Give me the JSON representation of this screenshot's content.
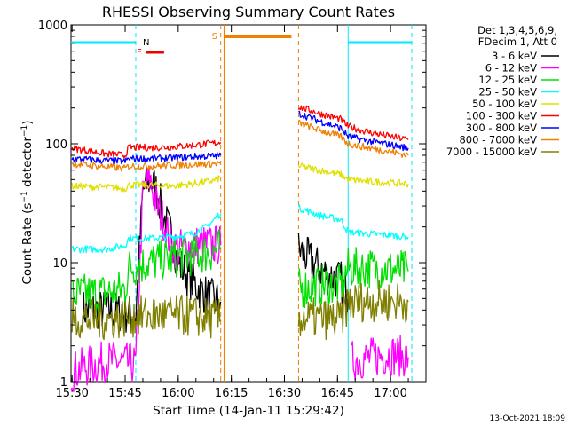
{
  "chart_data": {
    "type": "line",
    "title": "RHESSI Observing Summary Count Rates",
    "xlabel": "Start Time (14-Jan-11 15:29:42)",
    "ylabel": "Count Rate (s⁻¹ detector⁻¹)",
    "yscale": "log",
    "ylim": [
      1,
      1000
    ],
    "xlim": [
      "15:29:42",
      "17:10:00"
    ],
    "x_ticks": [
      "15:30",
      "15:45",
      "16:00",
      "16:15",
      "16:30",
      "16:45",
      "17:00"
    ],
    "y_ticks": [
      "1",
      "10",
      "100",
      "1000"
    ],
    "legend_header": [
      "Det 1,3,4,5,6,9,",
      "FDecim 1, Att 0"
    ],
    "legend_position": "right",
    "footer": "13-Oct-2021 18:09",
    "flag_labels": {
      "night": "N",
      "flare": "F",
      "saa": "S"
    },
    "colors": {
      "night": "#00e8ff",
      "saa": "#f08000",
      "flare": "#ee0000"
    },
    "flags": {
      "night": [
        [
          "15:29:42",
          "15:48"
        ],
        [
          "16:48",
          "17:06"
        ]
      ],
      "saa": [
        [
          "16:13",
          "16:32"
        ]
      ],
      "flare": [
        [
          "15:51",
          "15:56"
        ]
      ]
    },
    "data_gaps": [
      [
        "16:12",
        "16:34"
      ]
    ],
    "series": [
      {
        "name": "3 - 6 keV",
        "color": "#000000",
        "points": [
          [
            "15:33",
            4
          ],
          [
            "15:40",
            4
          ],
          [
            "15:48",
            3.6
          ],
          [
            "15:50",
            40
          ],
          [
            "15:52",
            50
          ],
          [
            "15:54",
            40
          ],
          [
            "15:56",
            24
          ],
          [
            "15:58",
            17
          ],
          [
            "16:00",
            10
          ],
          [
            "16:03",
            7.5
          ],
          [
            "16:06",
            6
          ],
          [
            "16:09",
            5
          ],
          [
            "16:12",
            4.7
          ],
          [
            "16:34",
            13
          ],
          [
            "16:38",
            10
          ],
          [
            "16:42",
            8
          ],
          [
            "16:46",
            7
          ],
          [
            "16:48",
            5
          ]
        ]
      },
      {
        "name": "6 - 12 keV",
        "color": "#ff00ff",
        "points": [
          [
            "15:29:42",
            1.2
          ],
          [
            "15:33",
            1.3
          ],
          [
            "15:40",
            1.5
          ],
          [
            "15:48",
            1.4
          ],
          [
            "15:50",
            38
          ],
          [
            "15:52",
            50
          ],
          [
            "15:54",
            30
          ],
          [
            "15:56",
            22
          ],
          [
            "15:58",
            14
          ],
          [
            "16:00",
            13
          ],
          [
            "16:05",
            14
          ],
          [
            "16:12",
            14
          ],
          [
            "16:49",
            1.5
          ],
          [
            "16:55",
            1.6
          ],
          [
            "17:00",
            1.7
          ],
          [
            "17:05",
            1.6
          ]
        ]
      },
      {
        "name": "12 - 25 keV",
        "color": "#00e000",
        "points": [
          [
            "15:30",
            5.4
          ],
          [
            "15:40",
            5.6
          ],
          [
            "15:45",
            6
          ],
          [
            "15:46",
            9
          ],
          [
            "15:52",
            10
          ],
          [
            "15:58",
            11
          ],
          [
            "16:04",
            11.5
          ],
          [
            "16:10",
            12.5
          ],
          [
            "16:12",
            13.5
          ],
          [
            "16:34",
            6
          ],
          [
            "16:40",
            6.5
          ],
          [
            "16:46",
            6.5
          ],
          [
            "16:48",
            9
          ],
          [
            "16:54",
            9
          ],
          [
            "17:00",
            8.8
          ],
          [
            "17:05",
            8.5
          ]
        ]
      },
      {
        "name": "25 - 50 keV",
        "color": "#00ffff",
        "points": [
          [
            "15:30",
            13
          ],
          [
            "15:40",
            13
          ],
          [
            "15:45",
            14
          ],
          [
            "15:46",
            16
          ],
          [
            "15:52",
            16
          ],
          [
            "15:58",
            16.5
          ],
          [
            "16:04",
            17.5
          ],
          [
            "16:08",
            20
          ],
          [
            "16:12",
            26
          ],
          [
            "16:34",
            29
          ],
          [
            "16:40",
            25
          ],
          [
            "16:46",
            23
          ],
          [
            "16:48",
            18
          ],
          [
            "16:54",
            17.5
          ],
          [
            "17:00",
            17
          ],
          [
            "17:05",
            16.5
          ]
        ]
      },
      {
        "name": "50 - 100 keV",
        "color": "#e0e000",
        "points": [
          [
            "15:30",
            44
          ],
          [
            "15:40",
            43
          ],
          [
            "15:45",
            42
          ],
          [
            "15:46",
            45
          ],
          [
            "15:52",
            45
          ],
          [
            "15:58",
            44
          ],
          [
            "16:04",
            46
          ],
          [
            "16:10",
            49
          ],
          [
            "16:12",
            52
          ],
          [
            "16:34",
            65
          ],
          [
            "16:40",
            60
          ],
          [
            "16:46",
            55
          ],
          [
            "16:48",
            50
          ],
          [
            "16:54",
            48
          ],
          [
            "17:00",
            47
          ],
          [
            "17:05",
            46
          ]
        ]
      },
      {
        "name": "100 - 300 keV",
        "color": "#ff0000",
        "points": [
          [
            "15:30",
            92
          ],
          [
            "15:40",
            82
          ],
          [
            "15:45",
            80
          ],
          [
            "15:46",
            93
          ],
          [
            "15:52",
            93
          ],
          [
            "15:58",
            94
          ],
          [
            "16:04",
            97
          ],
          [
            "16:10",
            101
          ],
          [
            "16:12",
            103
          ],
          [
            "16:34",
            205
          ],
          [
            "16:40",
            180
          ],
          [
            "16:46",
            160
          ],
          [
            "16:48",
            140
          ],
          [
            "16:54",
            125
          ],
          [
            "17:00",
            115
          ],
          [
            "17:05",
            108
          ]
        ]
      },
      {
        "name": "300 - 800 keV",
        "color": "#0000ff",
        "points": [
          [
            "15:30",
            75
          ],
          [
            "15:40",
            72
          ],
          [
            "15:45",
            71
          ],
          [
            "15:46",
            75
          ],
          [
            "15:52",
            75
          ],
          [
            "15:58",
            76
          ],
          [
            "16:04",
            78
          ],
          [
            "16:10",
            79
          ],
          [
            "16:12",
            80
          ],
          [
            "16:34",
            180
          ],
          [
            "16:40",
            155
          ],
          [
            "16:46",
            135
          ],
          [
            "16:48",
            115
          ],
          [
            "16:54",
            105
          ],
          [
            "17:00",
            98
          ],
          [
            "17:05",
            92
          ]
        ]
      },
      {
        "name": "800 - 7000 keV",
        "color": "#f08000",
        "points": [
          [
            "15:30",
            68
          ],
          [
            "15:40",
            64
          ],
          [
            "15:45",
            62
          ],
          [
            "15:46",
            65
          ],
          [
            "15:52",
            65
          ],
          [
            "15:58",
            66
          ],
          [
            "16:04",
            67
          ],
          [
            "16:10",
            68
          ],
          [
            "16:12",
            69
          ],
          [
            "16:34",
            150
          ],
          [
            "16:40",
            130
          ],
          [
            "16:46",
            115
          ],
          [
            "16:48",
            100
          ],
          [
            "16:54",
            92
          ],
          [
            "17:00",
            86
          ],
          [
            "17:05",
            80
          ]
        ]
      },
      {
        "name": "7000 - 15000 keV",
        "color": "#808000",
        "points": [
          [
            "15:30",
            3.4
          ],
          [
            "15:40",
            3.3
          ],
          [
            "15:46",
            3.5
          ],
          [
            "15:52",
            3.6
          ],
          [
            "16:00",
            3.6
          ],
          [
            "16:06",
            3.5
          ],
          [
            "16:12",
            3.3
          ],
          [
            "16:34",
            3.4
          ],
          [
            "16:40",
            3.4
          ],
          [
            "16:46",
            3.3
          ],
          [
            "16:48",
            4.6
          ],
          [
            "16:54",
            4.8
          ],
          [
            "17:00",
            4.7
          ],
          [
            "17:05",
            4.7
          ]
        ]
      }
    ]
  }
}
